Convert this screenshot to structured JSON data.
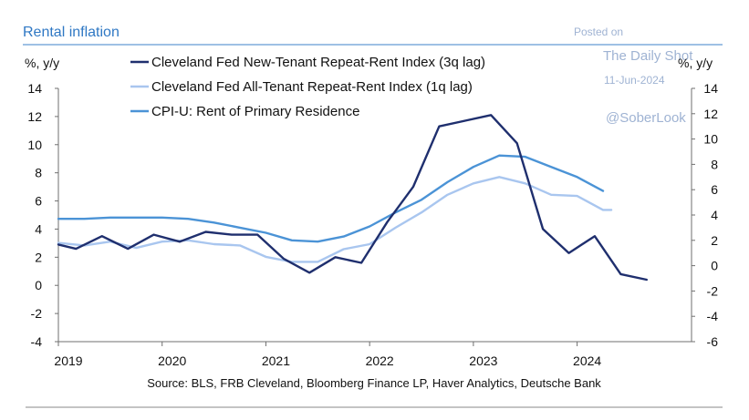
{
  "chart_data": {
    "type": "line",
    "title": "Rental inflation",
    "source": "Source: BLS, FRB Cleveland, Bloomberg Finance LP, Haver Analytics, Deutsche Bank",
    "watermark": {
      "posted": "Posted on",
      "site": "The Daily Shot",
      "date": "11-Jun-2024",
      "handle": "@SoberLook"
    },
    "ylabel_left": "%, y/y",
    "ylabel_right": "%, y/y",
    "ylim_left": [
      -4,
      14
    ],
    "ylim_right": [
      -6,
      14
    ],
    "yticks_left": [
      "14",
      "12",
      "10",
      "8",
      "6",
      "4",
      "2",
      "0",
      "-2",
      "-4"
    ],
    "yticks_right": [
      "14",
      "12",
      "10",
      "8",
      "6",
      "4",
      "2",
      "0",
      "-2",
      "-4",
      "-6"
    ],
    "x_range": [
      2019.0,
      2024.83
    ],
    "xticks": [
      "2019",
      "2020",
      "2021",
      "2022",
      "2023",
      "2024"
    ],
    "colors": {
      "new_tenant": "#1f2f6e",
      "all_tenant": "#a9c6ef",
      "cpi": "#4b93d6"
    },
    "series": [
      {
        "name": "Cleveland Fed New-Tenant Repeat-Rent Index (3q lag)",
        "axis": "left",
        "color_key": "new_tenant",
        "x": [
          2019.0,
          2019.17,
          2019.42,
          2019.67,
          2019.92,
          2020.17,
          2020.42,
          2020.67,
          2020.92,
          2021.17,
          2021.42,
          2021.67,
          2021.92,
          2022.17,
          2022.42,
          2022.67,
          2022.92,
          2023.17,
          2023.42,
          2023.67,
          2023.92,
          2024.17,
          2024.42,
          2024.67
        ],
        "values": [
          2.9,
          2.6,
          3.5,
          2.6,
          3.6,
          3.1,
          3.8,
          3.6,
          3.6,
          1.9,
          0.9,
          2.0,
          1.6,
          4.5,
          7.0,
          11.3,
          11.7,
          12.1,
          10.1,
          4.0,
          2.3,
          3.5,
          0.8,
          0.4
        ]
      },
      {
        "name": "Cleveland Fed All-Tenant Repeat-Rent Index (1q lag)",
        "axis": "right",
        "color_key": "all_tenant",
        "x": [
          2019.0,
          2019.25,
          2019.5,
          2019.75,
          2020.0,
          2020.25,
          2020.5,
          2020.75,
          2021.0,
          2021.25,
          2021.5,
          2021.75,
          2022.0,
          2022.25,
          2022.5,
          2022.75,
          2023.0,
          2023.25,
          2023.5,
          2023.75,
          2024.0,
          2024.25,
          2024.33
        ],
        "values": [
          1.8,
          1.6,
          1.9,
          1.4,
          1.9,
          2.0,
          1.7,
          1.6,
          0.7,
          0.3,
          0.3,
          1.3,
          1.7,
          3.0,
          4.2,
          5.6,
          6.5,
          7.0,
          6.5,
          5.6,
          5.5,
          4.4,
          4.4
        ]
      },
      {
        "name": "CPI-U: Rent of Primary Residence",
        "axis": "right",
        "color_key": "cpi",
        "x": [
          2019.0,
          2019.25,
          2019.5,
          2019.75,
          2020.0,
          2020.25,
          2020.5,
          2020.75,
          2021.0,
          2021.25,
          2021.5,
          2021.75,
          2022.0,
          2022.25,
          2022.5,
          2022.75,
          2023.0,
          2023.25,
          2023.5,
          2023.75,
          2024.0,
          2024.25
        ],
        "values": [
          3.7,
          3.7,
          3.8,
          3.8,
          3.8,
          3.7,
          3.4,
          3.0,
          2.6,
          2.0,
          1.9,
          2.3,
          3.1,
          4.2,
          5.2,
          6.6,
          7.8,
          8.7,
          8.6,
          7.8,
          7.0,
          5.9
        ]
      }
    ]
  }
}
